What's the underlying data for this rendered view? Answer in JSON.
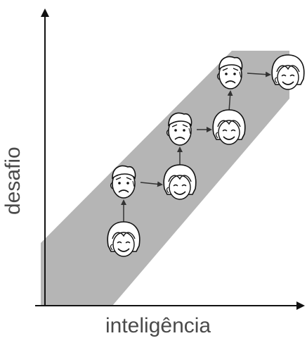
{
  "x_axis_label": "inteligência",
  "y_axis_label": "desafio",
  "band_color": "#b5b5b5",
  "axis_color": "#111111",
  "faces": [
    {
      "id": "1",
      "mood": "happy"
    },
    {
      "id": "2",
      "mood": "worried"
    },
    {
      "id": "3",
      "mood": "happy"
    },
    {
      "id": "4",
      "mood": "worried"
    },
    {
      "id": "5",
      "mood": "happy"
    },
    {
      "id": "6",
      "mood": "worried"
    },
    {
      "id": "7",
      "mood": "happy"
    }
  ],
  "transitions": [
    "up",
    "right",
    "up",
    "right",
    "up",
    "right"
  ]
}
